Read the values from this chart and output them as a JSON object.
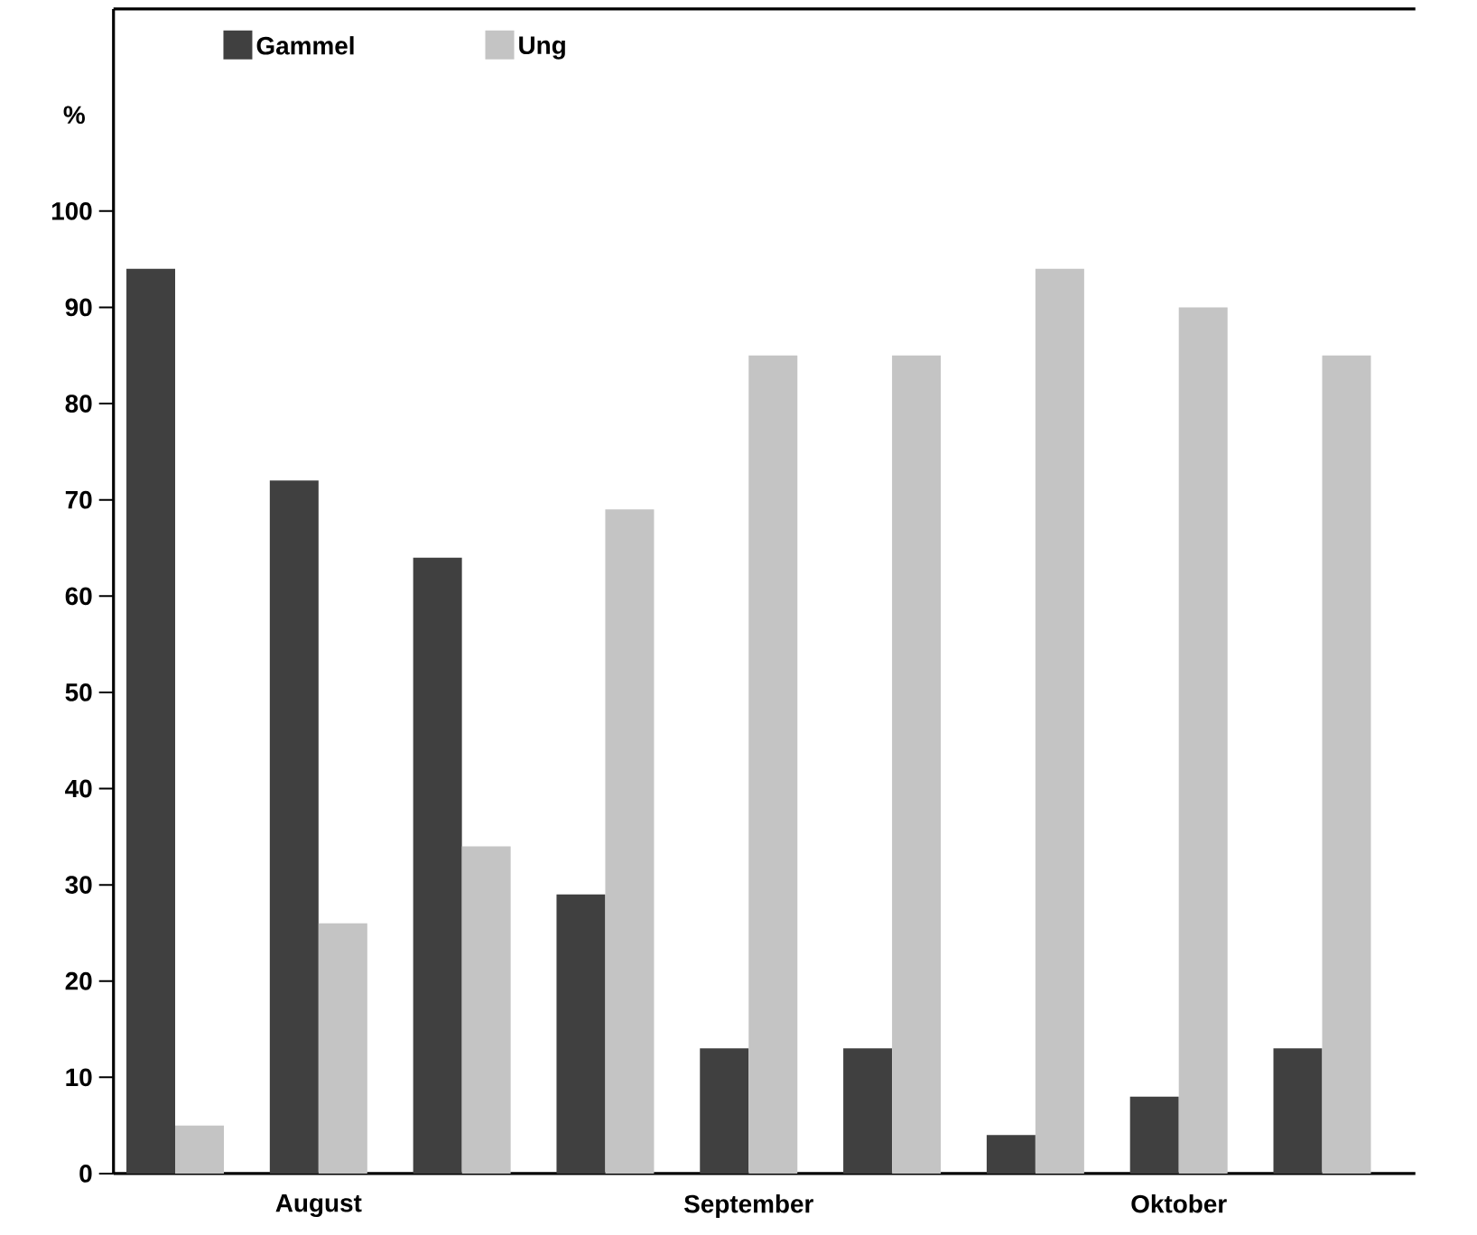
{
  "chart_data": {
    "type": "bar",
    "ylabel": "%",
    "categories": [
      null,
      "August",
      null,
      null,
      "September",
      null,
      null,
      "Oktober",
      null
    ],
    "series": [
      {
        "name": "Gammel",
        "color": "#404040",
        "values": [
          94,
          72,
          64,
          29,
          13,
          13,
          4,
          8,
          13
        ]
      },
      {
        "name": "Ung",
        "color": "#c4c4c4",
        "values": [
          5,
          26,
          34,
          69,
          85,
          85,
          94,
          90,
          85
        ]
      }
    ],
    "ylim": [
      0,
      121
    ],
    "yticks": [
      0,
      10,
      20,
      30,
      40,
      50,
      60,
      70,
      80,
      90,
      100
    ],
    "legend": "top left"
  }
}
